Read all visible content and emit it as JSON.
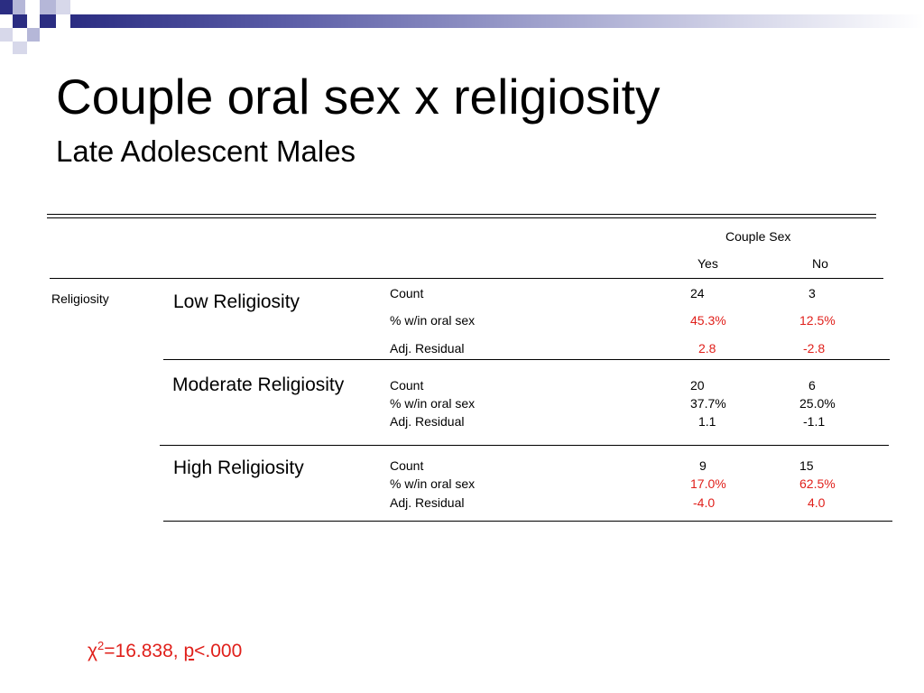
{
  "slide": {
    "title": "Couple oral sex x religiosity",
    "subtitle": "Late Adolescent Males"
  },
  "table": {
    "header_group": "Couple Sex",
    "col_yes": "Yes",
    "col_no": "No",
    "row_header": "Religiosity",
    "groups": [
      {
        "label": "Low Religiosity",
        "rows": [
          {
            "stat": "Count",
            "yes": "24",
            "no": "3"
          },
          {
            "stat": "% w/in oral sex",
            "yes": "45.3%",
            "no": "12.5%"
          },
          {
            "stat": "Adj. Residual",
            "yes": "2.8",
            "no": "-2.8"
          }
        ]
      },
      {
        "label": "Moderate Religiosity",
        "rows": [
          {
            "stat": "Count",
            "yes": "20",
            "no": "6"
          },
          {
            "stat": "% w/in oral sex",
            "yes": "37.7%",
            "no": "25.0%"
          },
          {
            "stat": "Adj. Residual",
            "yes": "1.1",
            "no": "-1.1"
          }
        ]
      },
      {
        "label": "High Religiosity",
        "rows": [
          {
            "stat": "Count",
            "yes": "9",
            "no": "15"
          },
          {
            "stat": "% w/in oral sex",
            "yes": "17.0%",
            "no": "62.5%"
          },
          {
            "stat": "Adj. Residual",
            "yes": "-4.0",
            "no": "4.0"
          }
        ]
      }
    ]
  },
  "footer": {
    "chi_symbol": "χ",
    "chi_exp": "2",
    "chi_value": "=16.838, ",
    "p_label": "p",
    "p_value": "<.000"
  },
  "colors": {
    "highlight": "#e0201b",
    "banner_dark": "#2b2d82"
  }
}
